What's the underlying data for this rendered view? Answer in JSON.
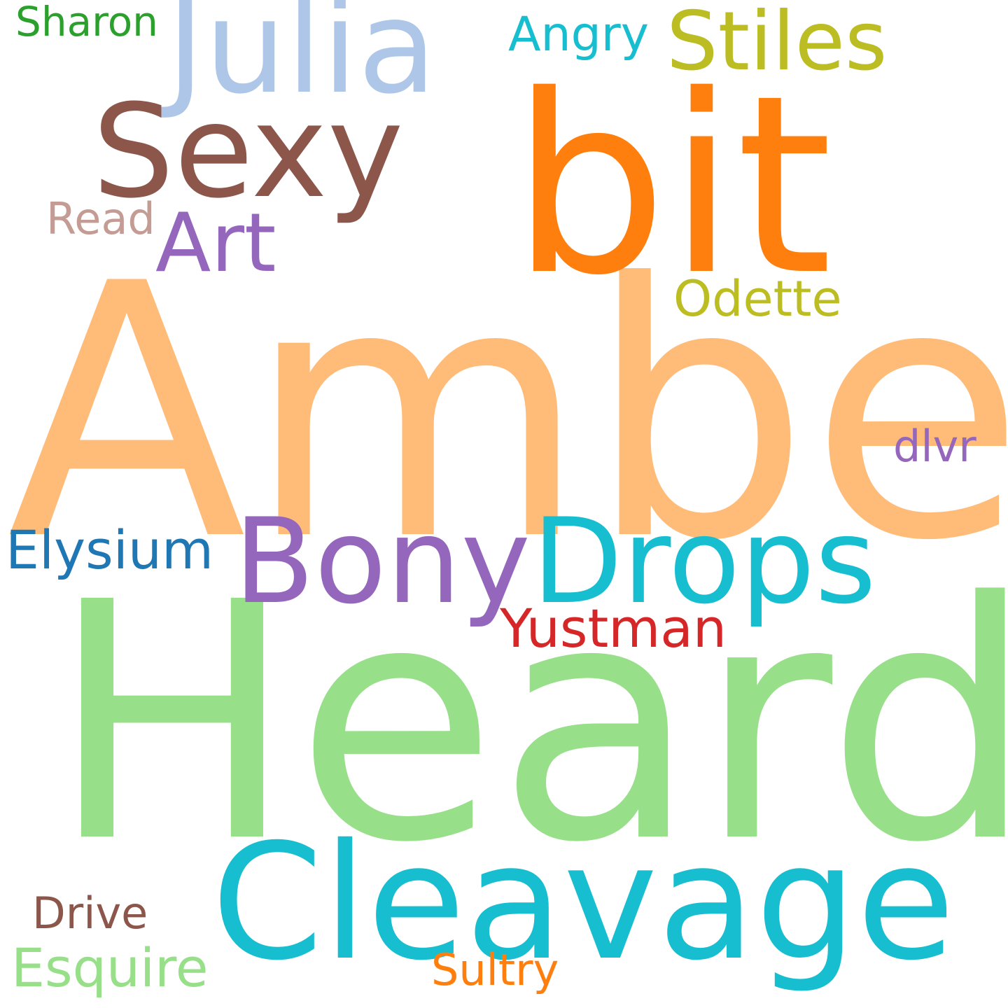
{
  "words": [
    {
      "key": "amber",
      "text": "Amber",
      "color": "#ffbb78"
    },
    {
      "key": "heard",
      "text": "Heard",
      "color": "#98df8a"
    },
    {
      "key": "bit",
      "text": "bit",
      "color": "#ff7f0e"
    },
    {
      "key": "cleavage",
      "text": "Cleavage",
      "color": "#17becf"
    },
    {
      "key": "julia",
      "text": "Julia",
      "color": "#aec7e8"
    },
    {
      "key": "sexy",
      "text": "Sexy",
      "color": "#8c564b"
    },
    {
      "key": "bony",
      "text": "Bony",
      "color": "#9467bd"
    },
    {
      "key": "drops",
      "text": "Drops",
      "color": "#17becf"
    },
    {
      "key": "stiles",
      "text": "Stiles",
      "color": "#bcbd22"
    },
    {
      "key": "art",
      "text": "Art",
      "color": "#9467bd"
    },
    {
      "key": "elysium",
      "text": "Elysium",
      "color": "#1f77b4"
    },
    {
      "key": "yustman",
      "text": "Yustman",
      "color": "#d62728"
    },
    {
      "key": "esquire",
      "text": "Esquire",
      "color": "#98df8a"
    },
    {
      "key": "odette",
      "text": "Odette",
      "color": "#bcbd22"
    },
    {
      "key": "angry",
      "text": "Angry",
      "color": "#17becf"
    },
    {
      "key": "read",
      "text": "Read",
      "color": "#c49c94"
    },
    {
      "key": "drive",
      "text": "Drive",
      "color": "#8c564b"
    },
    {
      "key": "sultry",
      "text": "Sultry",
      "color": "#ff7f0e"
    },
    {
      "key": "dlvr",
      "text": "dlvr",
      "color": "#9467bd"
    },
    {
      "key": "sharon",
      "text": "Sharon",
      "color": "#2ca02c"
    }
  ]
}
